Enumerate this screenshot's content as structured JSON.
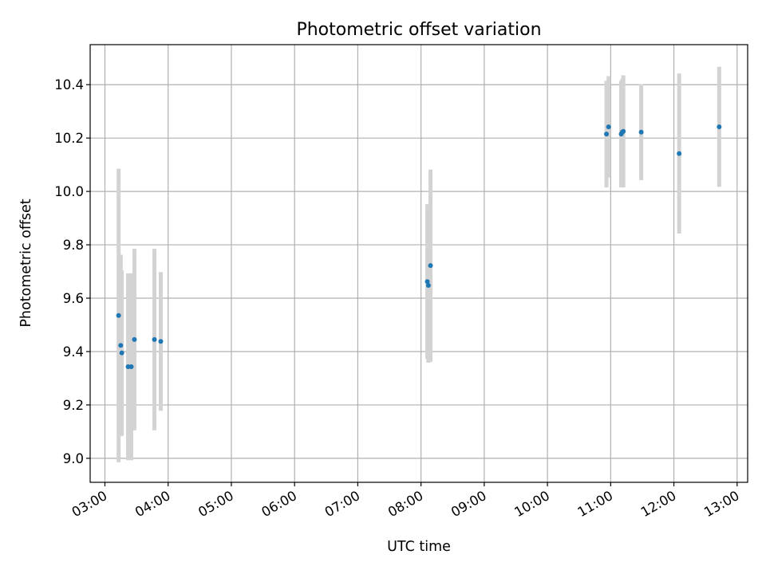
{
  "chart_data": {
    "type": "scatter",
    "title": "Photometric offset variation",
    "xlabel": "UTC time",
    "ylabel": "Photometric offset",
    "xlim": [
      "02:46",
      "13:10"
    ],
    "ylim": [
      8.91,
      10.55
    ],
    "x_ticks": [
      "03:00",
      "04:00",
      "05:00",
      "06:00",
      "07:00",
      "08:00",
      "09:00",
      "10:00",
      "11:00",
      "12:00",
      "13:00"
    ],
    "y_ticks": [
      9.0,
      9.2,
      9.4,
      9.6,
      9.8,
      10.0,
      10.2,
      10.4
    ],
    "grid": true,
    "colors": {
      "point": "#1f77b4",
      "error_bar": "#d3d3d3"
    },
    "points": [
      {
        "t": "03:13",
        "y": 9.535,
        "err": 0.55
      },
      {
        "t": "03:15",
        "y": 9.423,
        "err": 0.34
      },
      {
        "t": "03:16",
        "y": 9.395,
        "err": 0.31
      },
      {
        "t": "03:22",
        "y": 9.343,
        "err": 0.35
      },
      {
        "t": "03:25",
        "y": 9.343,
        "err": 0.35
      },
      {
        "t": "03:28",
        "y": 9.445,
        "err": 0.34
      },
      {
        "t": "03:47",
        "y": 9.445,
        "err": 0.34
      },
      {
        "t": "03:53",
        "y": 9.438,
        "err": 0.26
      },
      {
        "t": "08:06",
        "y": 9.662,
        "err": 0.29
      },
      {
        "t": "08:07",
        "y": 9.648,
        "err": 0.29
      },
      {
        "t": "08:09",
        "y": 9.722,
        "err": 0.36
      },
      {
        "t": "10:56",
        "y": 10.215,
        "err": 0.2
      },
      {
        "t": "10:58",
        "y": 10.242,
        "err": 0.19
      },
      {
        "t": "11:10",
        "y": 10.215,
        "err": 0.2
      },
      {
        "t": "11:11",
        "y": 10.222,
        "err": 0.2
      },
      {
        "t": "11:12",
        "y": 10.225,
        "err": 0.21
      },
      {
        "t": "11:29",
        "y": 10.222,
        "err": 0.18
      },
      {
        "t": "12:05",
        "y": 10.142,
        "err": 0.3
      },
      {
        "t": "12:43",
        "y": 10.242,
        "err": 0.225
      }
    ]
  }
}
